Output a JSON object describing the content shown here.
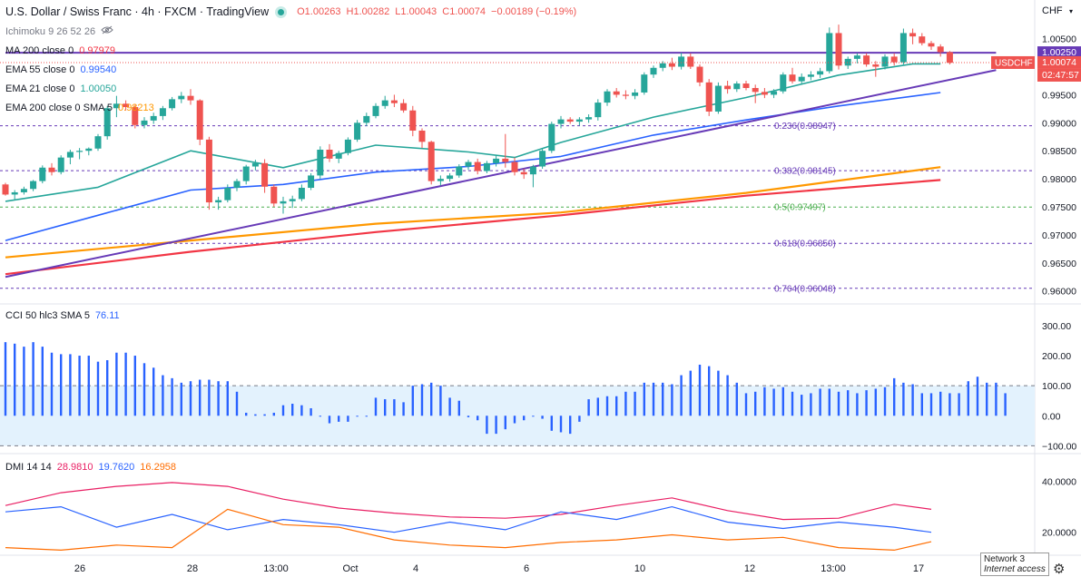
{
  "header": {
    "title": "U.S. Dollar / Swiss Franc · 4h · FXCM · TradingView",
    "open": "O1.00263",
    "high": "H1.00282",
    "low": "L1.00043",
    "close": "C1.00074",
    "change": "−0.00189 (−0.19%)"
  },
  "currency": "CHF",
  "indicators": [
    {
      "label": "Ichimoku 9 26 52 26",
      "value": "",
      "color": "#787b86"
    },
    {
      "label": "MA 200 close 0",
      "value": "0.97979",
      "color": "#f23645"
    },
    {
      "label": "EMA 55 close 0",
      "value": "0.99540",
      "color": "#2962ff"
    },
    {
      "label": "EMA 21 close 0",
      "value": "1.00050",
      "color": "#26a69a"
    },
    {
      "label": "EMA 200 close 0 SMA 5",
      "value": "0.98213",
      "color": "#ff9800"
    }
  ],
  "price_labels": {
    "line": "1.00250",
    "symbol": "USDCHF",
    "last": "1.00074",
    "countdown": "02:47:57"
  },
  "colors": {
    "up": "#26a69a",
    "down": "#ef5350",
    "trend": "#673ab7",
    "ema21": "#26a69a",
    "ema55": "#2962ff",
    "ema200": "#ff9800",
    "ma200": "#f23645",
    "cci": "#2962ff",
    "cci_band": "#e3f2fd"
  },
  "chart_data": [
    {
      "type": "candlestick",
      "title": "U.S. Dollar / Swiss Franc · 4h · FXCM",
      "ylim": [
        0.959,
        1.008
      ],
      "yticks": [
        "1.00500",
        "0.99500",
        "0.99000",
        "0.98500",
        "0.98000",
        "0.97500",
        "0.97000",
        "0.96500",
        "0.96000"
      ],
      "xticks": [
        "26",
        "28",
        "13:00",
        "Oct",
        "4",
        "6",
        "10",
        "12",
        "13:00",
        "17"
      ],
      "candles": [
        [
          0.979,
          0.9793,
          0.977,
          0.9772
        ],
        [
          0.9772,
          0.978,
          0.9762,
          0.9776
        ],
        [
          0.9776,
          0.9786,
          0.9772,
          0.9782
        ],
        [
          0.9782,
          0.9798,
          0.9778,
          0.9796
        ],
        [
          0.9796,
          0.9824,
          0.9792,
          0.982
        ],
        [
          0.982,
          0.9828,
          0.9806,
          0.9812
        ],
        [
          0.9812,
          0.9842,
          0.9808,
          0.9838
        ],
        [
          0.9838,
          0.9852,
          0.9826,
          0.9848
        ],
        [
          0.9848,
          0.9855,
          0.9835,
          0.985
        ],
        [
          0.985,
          0.9856,
          0.9842,
          0.9854
        ],
        [
          0.9854,
          0.988,
          0.985,
          0.9876
        ],
        [
          0.9876,
          0.993,
          0.987,
          0.9926
        ],
        [
          0.9926,
          0.9948,
          0.991,
          0.9934
        ],
        [
          0.9934,
          0.994,
          0.9922,
          0.9928
        ],
        [
          0.9928,
          0.9932,
          0.989,
          0.9896
        ],
        [
          0.9896,
          0.991,
          0.989,
          0.9904
        ],
        [
          0.9904,
          0.9918,
          0.9898,
          0.9912
        ],
        [
          0.9912,
          0.993,
          0.9905,
          0.9926
        ],
        [
          0.9926,
          0.9946,
          0.9922,
          0.9942
        ],
        [
          0.9942,
          0.9955,
          0.9935,
          0.9948
        ],
        [
          0.9948,
          0.996,
          0.9932,
          0.994
        ],
        [
          0.994,
          0.9942,
          0.986,
          0.987
        ],
        [
          0.987,
          0.9875,
          0.9745,
          0.9758
        ],
        [
          0.9758,
          0.9768,
          0.9745,
          0.9762
        ],
        [
          0.9762,
          0.979,
          0.9758,
          0.9784
        ],
        [
          0.9784,
          0.98,
          0.9778,
          0.9796
        ],
        [
          0.9796,
          0.9825,
          0.979,
          0.9822
        ],
        [
          0.9822,
          0.9834,
          0.9815,
          0.9828
        ],
        [
          0.9828,
          0.9835,
          0.9775,
          0.9786
        ],
        [
          0.9786,
          0.979,
          0.975,
          0.9756
        ],
        [
          0.9756,
          0.9768,
          0.9738,
          0.976
        ],
        [
          0.976,
          0.977,
          0.9748,
          0.9764
        ],
        [
          0.9764,
          0.979,
          0.976,
          0.9784
        ],
        [
          0.9784,
          0.981,
          0.978,
          0.9806
        ],
        [
          0.9806,
          0.9858,
          0.98,
          0.9852
        ],
        [
          0.9852,
          0.9862,
          0.983,
          0.9836
        ],
        [
          0.9836,
          0.985,
          0.9828,
          0.9846
        ],
        [
          0.9846,
          0.9874,
          0.9842,
          0.987
        ],
        [
          0.987,
          0.9905,
          0.9866,
          0.99
        ],
        [
          0.99,
          0.9918,
          0.9894,
          0.9912
        ],
        [
          0.9912,
          0.9935,
          0.9908,
          0.993
        ],
        [
          0.993,
          0.9948,
          0.9925,
          0.994
        ],
        [
          0.994,
          0.995,
          0.9928,
          0.9935
        ],
        [
          0.9935,
          0.9942,
          0.9918,
          0.9922
        ],
        [
          0.9922,
          0.993,
          0.9876,
          0.9886
        ],
        [
          0.9886,
          0.989,
          0.9855,
          0.9866
        ],
        [
          0.9866,
          0.9868,
          0.979,
          0.9796
        ],
        [
          0.9796,
          0.9806,
          0.9788,
          0.98
        ],
        [
          0.98,
          0.981,
          0.9795,
          0.9806
        ],
        [
          0.9806,
          0.9826,
          0.9802,
          0.9822
        ],
        [
          0.9822,
          0.9834,
          0.9816,
          0.983
        ],
        [
          0.983,
          0.9836,
          0.9808,
          0.9814
        ],
        [
          0.9814,
          0.9832,
          0.981,
          0.9828
        ],
        [
          0.9828,
          0.9842,
          0.9822,
          0.9836
        ],
        [
          0.9836,
          0.988,
          0.982,
          0.983
        ],
        [
          0.983,
          0.9838,
          0.9806,
          0.9812
        ],
        [
          0.9812,
          0.9818,
          0.98,
          0.9808
        ],
        [
          0.9808,
          0.9825,
          0.9785,
          0.9822
        ],
        [
          0.9822,
          0.9855,
          0.9818,
          0.985
        ],
        [
          0.985,
          0.9902,
          0.9846,
          0.9898
        ],
        [
          0.9898,
          0.9912,
          0.989,
          0.9906
        ],
        [
          0.9906,
          0.991,
          0.9898,
          0.9902
        ],
        [
          0.9902,
          0.991,
          0.9895,
          0.9906
        ],
        [
          0.9906,
          0.9915,
          0.99,
          0.991
        ],
        [
          0.991,
          0.9942,
          0.9904,
          0.9936
        ],
        [
          0.9936,
          0.996,
          0.993,
          0.9956
        ],
        [
          0.9956,
          0.9962,
          0.9945,
          0.995
        ],
        [
          0.995,
          0.9958,
          0.9942,
          0.9948
        ],
        [
          0.9948,
          0.996,
          0.9942,
          0.9954
        ],
        [
          0.9954,
          0.999,
          0.995,
          0.9986
        ],
        [
          0.9986,
          1.0002,
          0.998,
          0.9998
        ],
        [
          0.9998,
          1.001,
          0.9992,
          1.0006
        ],
        [
          1.0006,
          1.0016,
          0.9994,
          1.0
        ],
        [
          1.0,
          1.0025,
          0.9995,
          1.0018
        ],
        [
          1.0018,
          1.0024,
          0.9996,
          1.0
        ],
        [
          1.0,
          1.0004,
          0.9965,
          0.9972
        ],
        [
          0.9972,
          0.9978,
          0.9912,
          0.992
        ],
        [
          0.992,
          0.9972,
          0.9916,
          0.9966
        ],
        [
          0.9966,
          0.9975,
          0.9952,
          0.996
        ],
        [
          0.996,
          0.9974,
          0.9955,
          0.997
        ],
        [
          0.997,
          0.9975,
          0.9958,
          0.9962
        ],
        [
          0.9962,
          0.9968,
          0.9935,
          0.9955
        ],
        [
          0.9955,
          0.9962,
          0.9944,
          0.995
        ],
        [
          0.995,
          0.996,
          0.9944,
          0.9956
        ],
        [
          0.9956,
          0.999,
          0.9952,
          0.9986
        ],
        [
          0.9986,
          0.9998,
          0.997,
          0.9974
        ],
        [
          0.9974,
          0.9988,
          0.9968,
          0.9982
        ],
        [
          0.9982,
          0.9992,
          0.9976,
          0.9986
        ],
        [
          0.9986,
          0.9998,
          0.998,
          0.9992
        ],
        [
          0.9992,
          1.007,
          0.9988,
          1.006
        ],
        [
          1.006,
          1.0075,
          0.9995,
          1.0002
        ],
        [
          1.0002,
          1.0018,
          0.9996,
          1.0014
        ],
        [
          1.0014,
          1.0024,
          1.0006,
          1.002
        ],
        [
          1.002,
          1.0024,
          1.0,
          1.0004
        ],
        [
          1.0004,
          1.001,
          0.9982,
          1.0
        ],
        [
          1.0,
          1.0022,
          0.9995,
          1.0018
        ],
        [
          1.0018,
          1.0024,
          1.0002,
          1.0008
        ],
        [
          1.0008,
          1.0068,
          1.0004,
          1.006
        ],
        [
          1.006,
          1.0068,
          1.004,
          1.0054
        ],
        [
          1.0054,
          1.006,
          1.0038,
          1.0042
        ],
        [
          1.0042,
          1.0046,
          1.003,
          1.0036
        ],
        [
          1.0036,
          1.004,
          1.0018,
          1.0026
        ],
        [
          1.0026,
          1.0028,
          1.0004,
          1.0007
        ]
      ],
      "ema21": [
        [
          0,
          0.976
        ],
        [
          10,
          0.9785
        ],
        [
          20,
          0.985
        ],
        [
          30,
          0.982
        ],
        [
          40,
          0.986
        ],
        [
          50,
          0.9848
        ],
        [
          55,
          0.9838
        ],
        [
          60,
          0.9865
        ],
        [
          70,
          0.991
        ],
        [
          80,
          0.9945
        ],
        [
          90,
          0.9985
        ],
        [
          98,
          1.0005
        ],
        [
          101,
          1.0005
        ]
      ],
      "ema55": [
        [
          0,
          0.969
        ],
        [
          10,
          0.9735
        ],
        [
          20,
          0.978
        ],
        [
          30,
          0.979
        ],
        [
          40,
          0.9812
        ],
        [
          50,
          0.9822
        ],
        [
          60,
          0.984
        ],
        [
          70,
          0.9878
        ],
        [
          80,
          0.9905
        ],
        [
          90,
          0.993
        ],
        [
          101,
          0.9954
        ]
      ],
      "ema200": [
        [
          0,
          0.966
        ],
        [
          20,
          0.969
        ],
        [
          40,
          0.972
        ],
        [
          60,
          0.974
        ],
        [
          80,
          0.9775
        ],
        [
          101,
          0.9821
        ]
      ],
      "ma200": [
        [
          0,
          0.963
        ],
        [
          20,
          0.967
        ],
        [
          40,
          0.9705
        ],
        [
          60,
          0.9735
        ],
        [
          80,
          0.977
        ],
        [
          101,
          0.9798
        ]
      ],
      "trendlines": [
        {
          "from": [
            0,
            0.9625
          ],
          "to": [
            107,
            0.9994
          ]
        },
        {
          "from": [
            0,
            1.0025
          ],
          "to": [
            107,
            1.0025
          ]
        }
      ],
      "fib": [
        {
          "label": "0.236(0.98947)",
          "value": 0.98947,
          "color": "#673ab7"
        },
        {
          "label": "0.382(0.98145)",
          "value": 0.98145,
          "color": "#673ab7"
        },
        {
          "label": "0.5(0.97497)",
          "value": 0.97497,
          "color": "#4caf50"
        },
        {
          "label": "0.618(0.96850)",
          "value": 0.9685,
          "color": "#673ab7"
        },
        {
          "label": "0.764(0.96048)",
          "value": 0.96048,
          "color": "#673ab7"
        }
      ]
    },
    {
      "type": "bar",
      "title": "CCI 50 hlc3 SMA 5",
      "current": "76.11",
      "ylim": [
        -120,
        330
      ],
      "yticks": [
        "300.00",
        "200.00",
        "100.00",
        "0.00",
        "−100.00"
      ],
      "band": [
        -100,
        100
      ],
      "values": [
        245,
        240,
        230,
        245,
        230,
        210,
        205,
        205,
        200,
        200,
        180,
        185,
        210,
        210,
        200,
        175,
        160,
        135,
        125,
        110,
        115,
        120,
        120,
        115,
        115,
        80,
        10,
        5,
        5,
        10,
        35,
        40,
        35,
        25,
        0,
        -25,
        -20,
        -20,
        0,
        0,
        60,
        55,
        55,
        45,
        100,
        105,
        110,
        100,
        60,
        50,
        -5,
        -15,
        -60,
        -60,
        -45,
        -25,
        -15,
        0,
        -10,
        -50,
        -55,
        -60,
        -20,
        55,
        60,
        65,
        65,
        80,
        80,
        110,
        110,
        110,
        105,
        135,
        150,
        170,
        165,
        150,
        135,
        110,
        75,
        80,
        95,
        90,
        95,
        80,
        70,
        75,
        90,
        90,
        80,
        85,
        75,
        85,
        90,
        95,
        125,
        110,
        105,
        75,
        75,
        80,
        75,
        75,
        115,
        130,
        110,
        110,
        75
      ],
      "xticks": [
        "26",
        "28",
        "13:00",
        "Oct",
        "4",
        "6",
        "10",
        "12",
        "13:00",
        "17"
      ]
    },
    {
      "type": "line",
      "title": "DMI 14 14",
      "ylim": [
        11,
        48
      ],
      "yticks": [
        "40.0000",
        "20.0000"
      ],
      "series": [
        {
          "name": "",
          "color": "#e91e63",
          "current": "28.9810",
          "x": [
            0,
            6,
            12,
            18,
            24,
            30,
            36,
            42,
            48,
            54,
            60,
            66,
            72,
            78,
            84,
            90,
            96,
            100
          ],
          "y": [
            30.5,
            35.5,
            38,
            39.5,
            38,
            33,
            29.5,
            27.5,
            26,
            25.5,
            27,
            30.5,
            33.5,
            28.5,
            25,
            25.5,
            31,
            29
          ]
        },
        {
          "name": "",
          "color": "#2962ff",
          "current": "19.7620",
          "x": [
            0,
            6,
            12,
            18,
            24,
            30,
            36,
            42,
            48,
            54,
            60,
            66,
            72,
            78,
            84,
            90,
            96,
            100
          ],
          "y": [
            28,
            30,
            22,
            27,
            21,
            25,
            23,
            20,
            24,
            21,
            28,
            25,
            30,
            24,
            21.5,
            24,
            22,
            20
          ]
        },
        {
          "name": "",
          "color": "#ff6d00",
          "current": "16.2958",
          "x": [
            0,
            6,
            12,
            18,
            24,
            30,
            36,
            42,
            48,
            54,
            60,
            66,
            72,
            78,
            84,
            90,
            96,
            100
          ],
          "y": [
            14,
            13,
            15,
            14,
            29,
            23,
            22,
            17,
            15,
            14,
            16,
            17,
            19,
            17,
            18,
            14,
            13,
            16.3
          ]
        }
      ],
      "xticks": [
        "26",
        "28",
        "13:00",
        "Oct",
        "4",
        "6",
        "10",
        "12",
        "13:00",
        "17"
      ]
    }
  ],
  "status": {
    "network": "Network 3",
    "access": "Internet access"
  }
}
